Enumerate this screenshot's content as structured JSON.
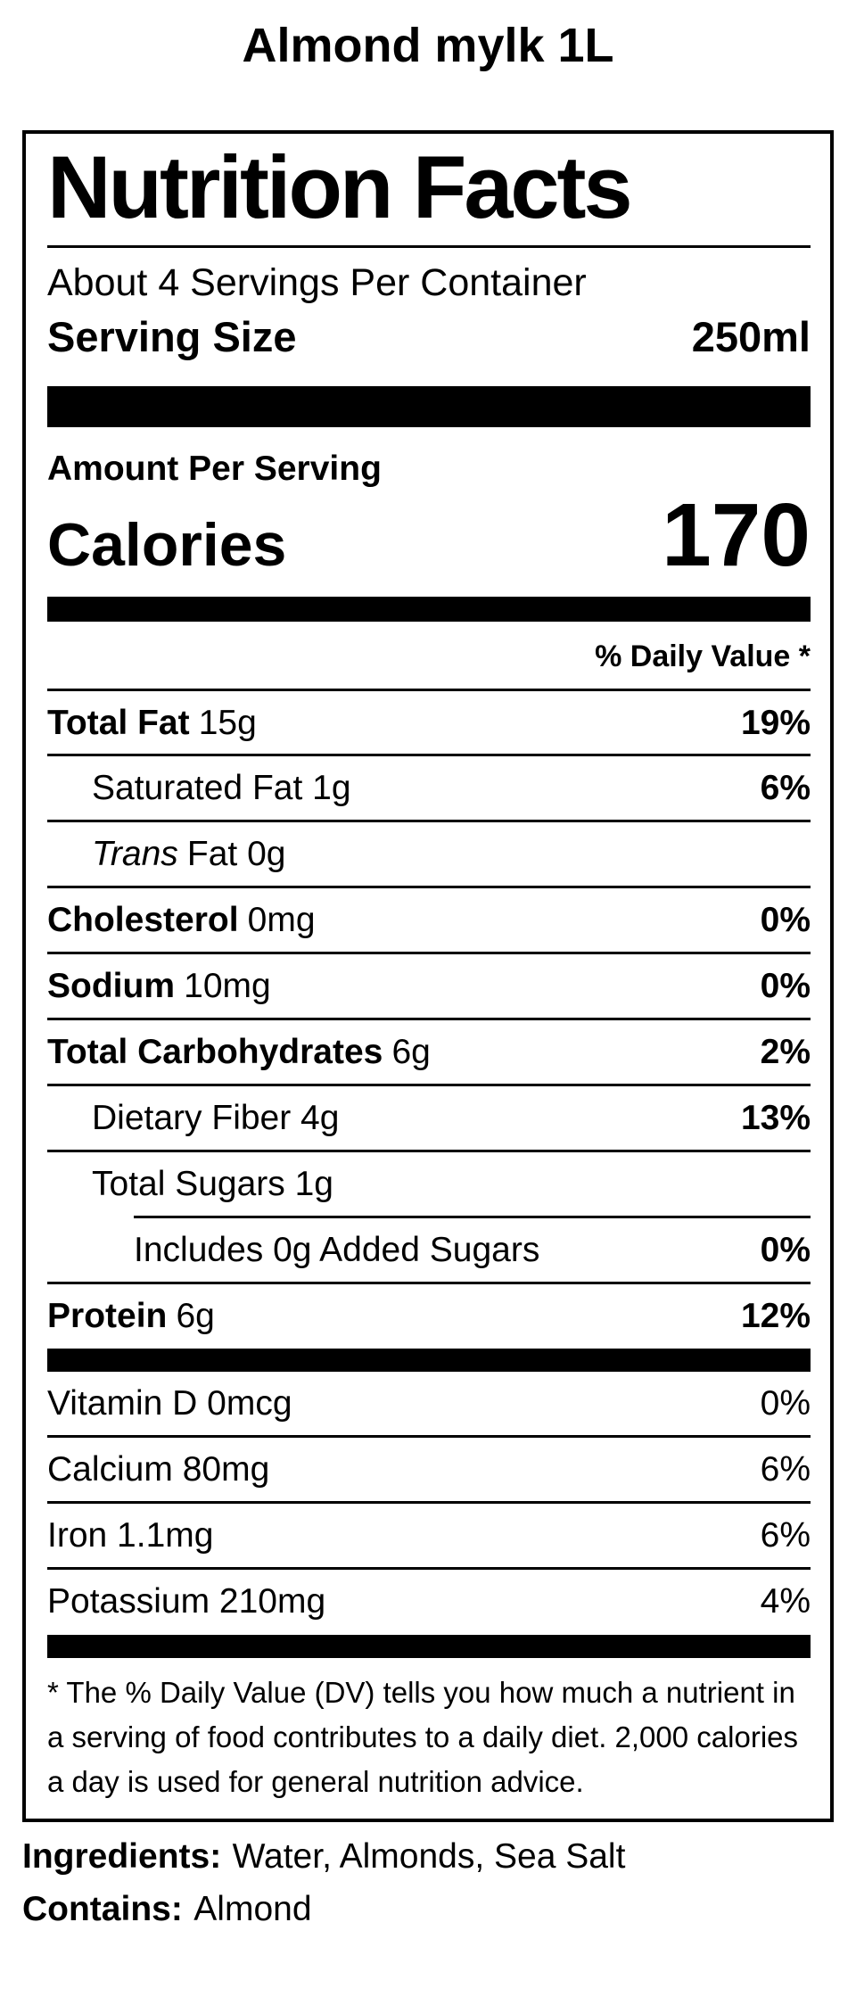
{
  "page": {
    "title": "Almond mylk 1L"
  },
  "label": {
    "title": "Nutrition Facts",
    "servings_per_container": "About 4 Servings Per Container",
    "serving_size_label": "Serving Size",
    "serving_size_value": "250ml",
    "amount_per_serving_label": "Amount Per Serving",
    "calories_label": "Calories",
    "calories_value": "170",
    "daily_value_header": "% Daily Value *",
    "nutrients": [
      {
        "name_bold": "Total Fat",
        "name_italic": "",
        "name_rest": "15g",
        "dv": "19%"
      },
      {
        "name_bold": "",
        "name_italic": "",
        "name_rest": "Saturated Fat 1g",
        "dv": "6%"
      },
      {
        "name_bold": "",
        "name_italic": "Trans",
        "name_rest": "Fat 0g",
        "dv": ""
      },
      {
        "name_bold": "Cholesterol",
        "name_italic": "",
        "name_rest": "0mg",
        "dv": "0%"
      },
      {
        "name_bold": "Sodium",
        "name_italic": "",
        "name_rest": "10mg",
        "dv": "0%"
      },
      {
        "name_bold": "Total Carbohydrates",
        "name_italic": "",
        "name_rest": "6g",
        "dv": "2%"
      },
      {
        "name_bold": "",
        "name_italic": "",
        "name_rest": "Dietary Fiber 4g",
        "dv": "13%"
      },
      {
        "name_bold": "",
        "name_italic": "",
        "name_rest": "Total Sugars 1g",
        "dv": ""
      },
      {
        "name_bold": "",
        "name_italic": "",
        "name_rest": "Includes 0g Added Sugars",
        "dv": "0%"
      },
      {
        "name_bold": "Protein",
        "name_italic": "",
        "name_rest": "6g",
        "dv": "12%"
      }
    ],
    "vitamins": [
      {
        "name": "Vitamin D 0mcg",
        "dv": "0%"
      },
      {
        "name": "Calcium 80mg",
        "dv": "6%"
      },
      {
        "name": "Iron 1.1mg",
        "dv": "6%"
      },
      {
        "name": "Potassium 210mg",
        "dv": "4%"
      }
    ],
    "footnote": "* The % Daily Value (DV) tells you how much a nutrient in a serving of food contributes to a daily diet. 2,000 calories a day is used for general nutrition advice."
  },
  "ingredients": {
    "label": "Ingredients:",
    "value": "Water, Almonds, Sea Salt"
  },
  "contains": {
    "label": "Contains:",
    "value": "Almond"
  }
}
